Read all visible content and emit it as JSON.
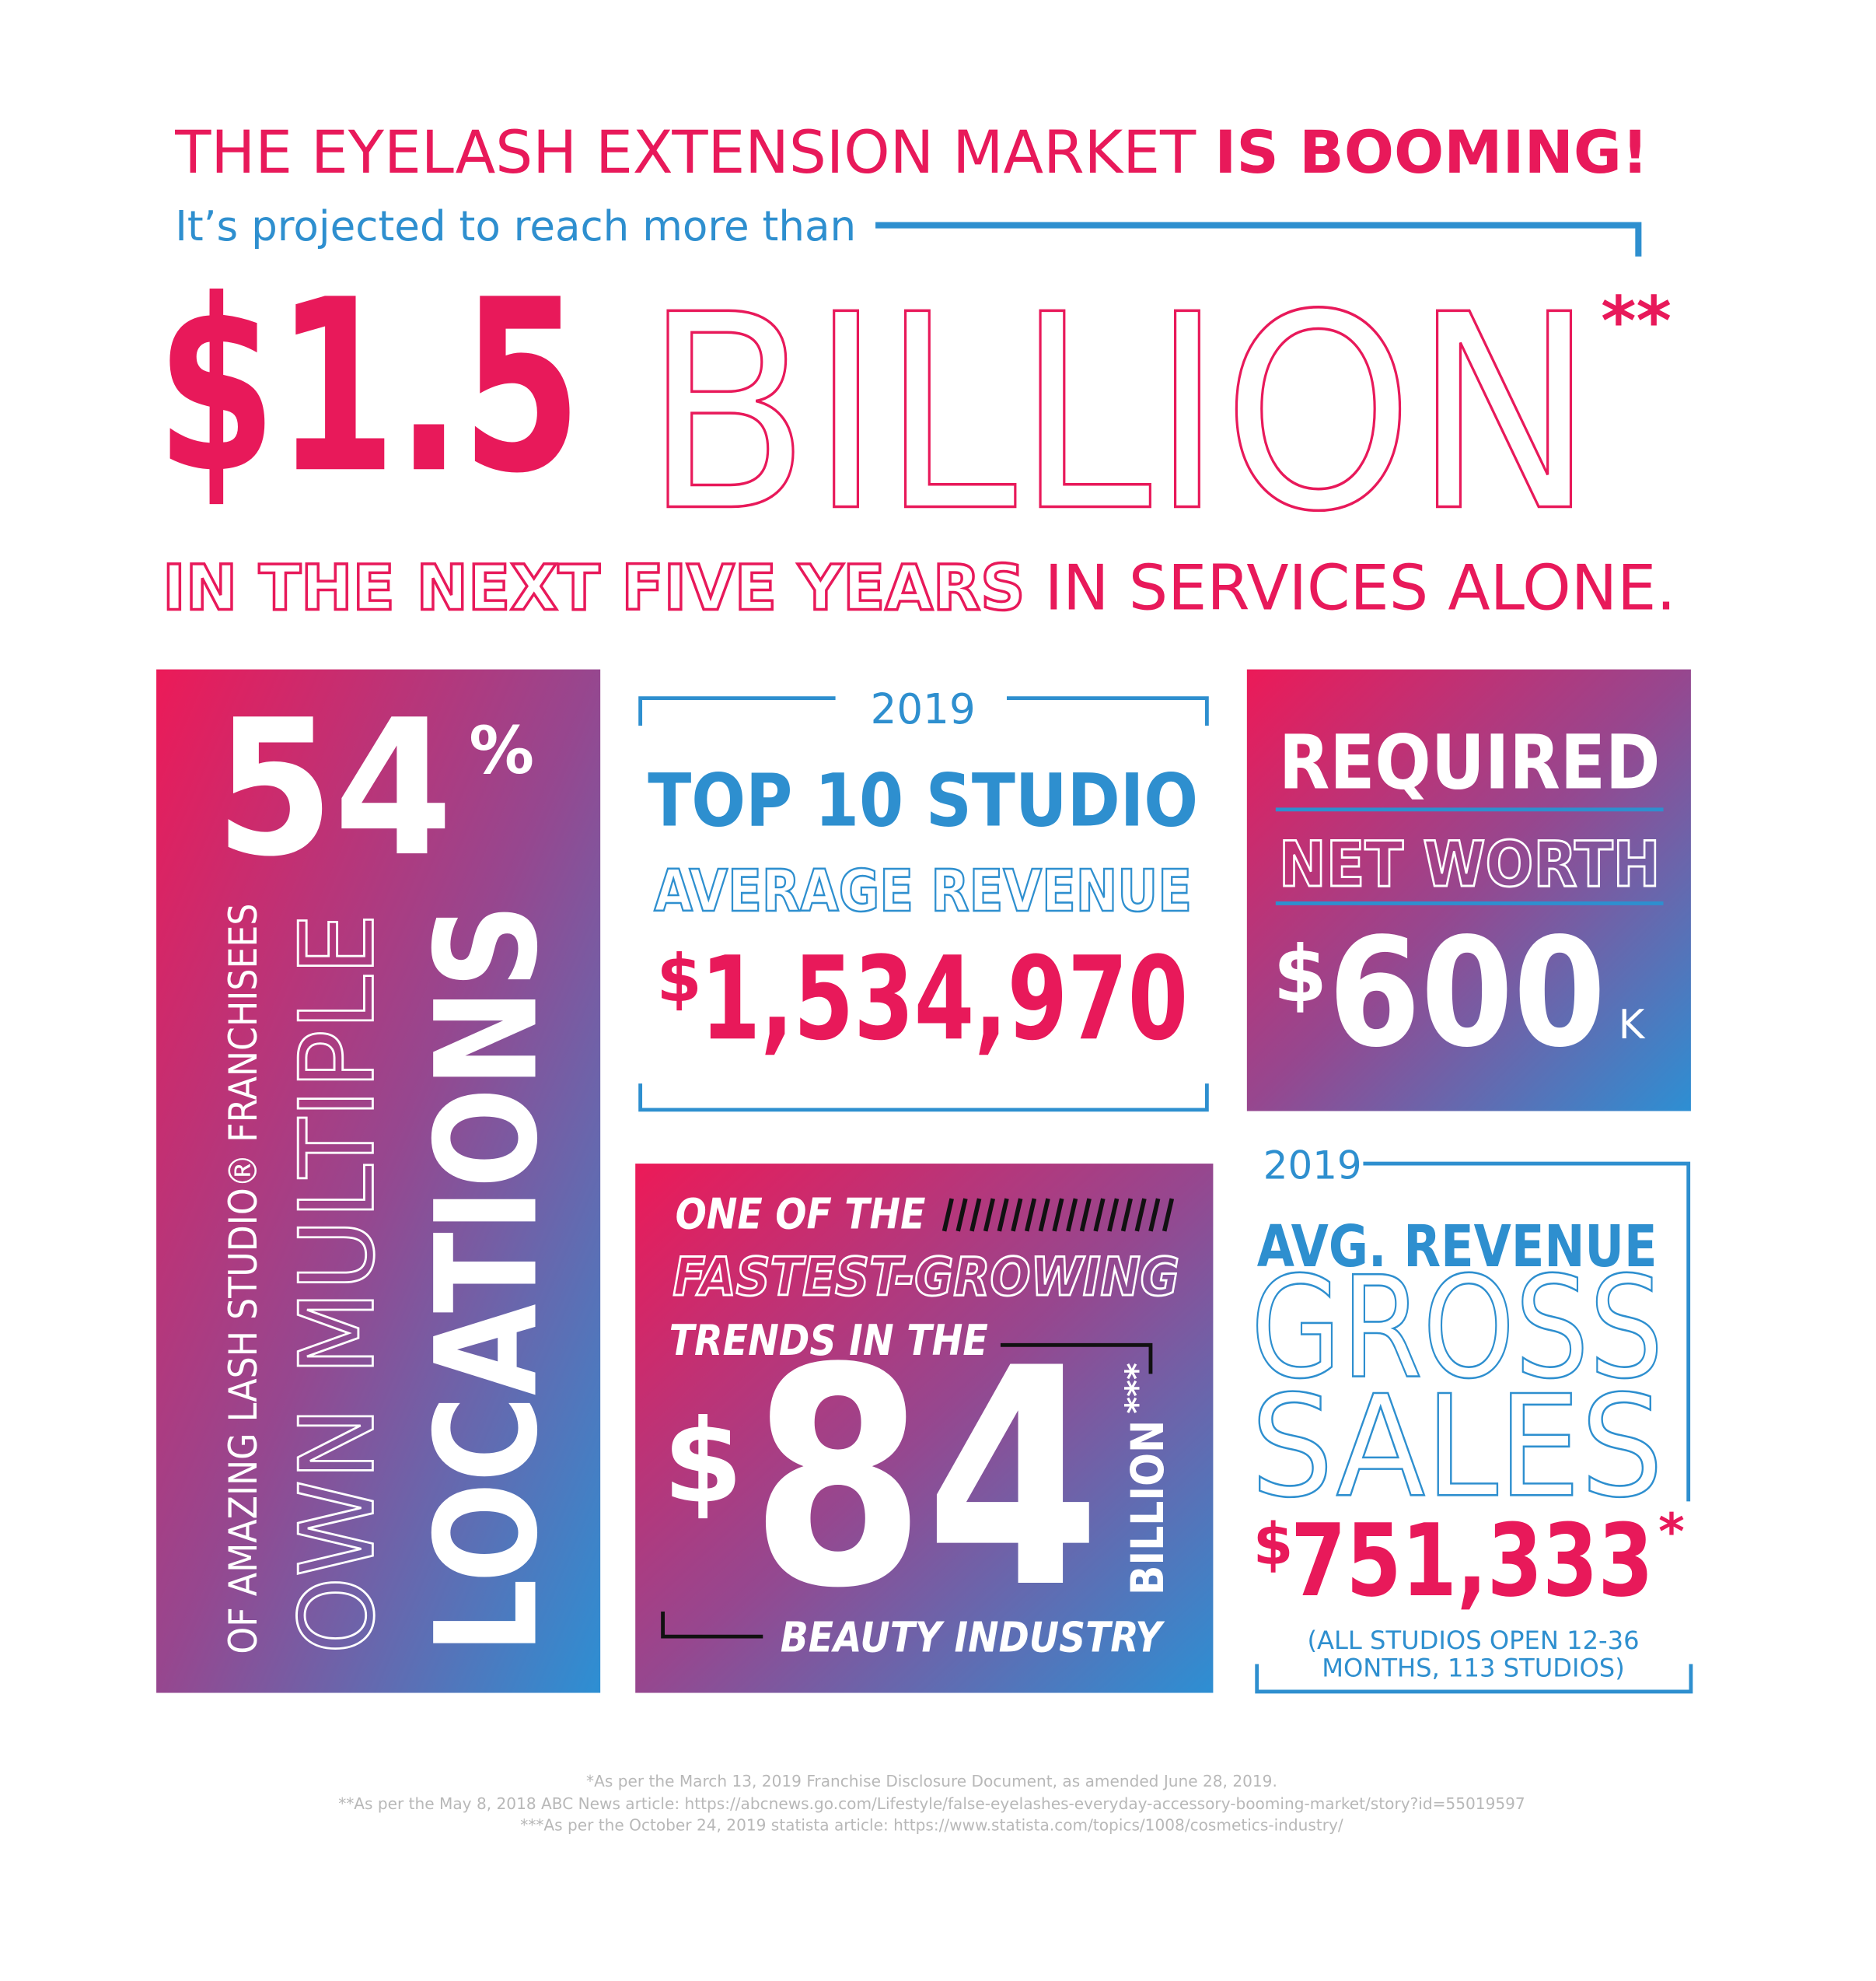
{
  "header": {
    "title_regular": "THE EYELASH EXTENSION MARKET",
    "title_bold": "IS BOOMING!",
    "subtitle": "It’s projected to reach more than",
    "amount": "$1.5",
    "unit": "BILLION",
    "mark": "**",
    "tagline_outline": "IN THE NEXT FIVE YEARS",
    "tagline_solid": "IN SERVICES ALONE."
  },
  "locations": {
    "value": "54",
    "unit": "%",
    "line1": "OF AMAZING LASH STUDIO® FRANCHISEES",
    "line2": "OWN MULTIPLE",
    "line3": "LOCATIONS"
  },
  "top_studio": {
    "year": "2019",
    "title": "TOP 10 STUDIO",
    "subtitle": "AVERAGE REVENUE",
    "currency": "$",
    "amount": "1,534,970"
  },
  "net_worth": {
    "title": "REQUIRED",
    "subtitle": "NET WORTH",
    "currency": "$",
    "amount": "600",
    "unit": "K"
  },
  "beauty": {
    "line1": "ONE OF THE",
    "line2": "FASTEST-GROWING",
    "line3": "TRENDS IN THE",
    "currency": "$",
    "amount": "84",
    "unit": "BILLION",
    "mark": "***",
    "line4": "BEAUTY INDUSTRY"
  },
  "gross": {
    "year": "2019",
    "title": "AVG. REVENUE",
    "line1": "GROSS",
    "line2": "SALES",
    "currency": "$",
    "amount": "751,333",
    "mark": "*",
    "note": [
      "(ALL STUDIOS OPEN 12-36",
      "MONTHS, 113 STUDIOS)"
    ]
  },
  "footnotes": [
    "*As per the March 13, 2019 Franchise Disclosure Document, as amended June 28, 2019.",
    "**As per the May 8, 2018 ABC News article: https://abcnews.go.com/Lifestyle/false-eyelashes-everyday-accessory-booming-market/story?id=55019597",
    "***As per the October 24, 2019 statista article: https://www.statista.com/topics/1008/cosmetics-industry/"
  ]
}
